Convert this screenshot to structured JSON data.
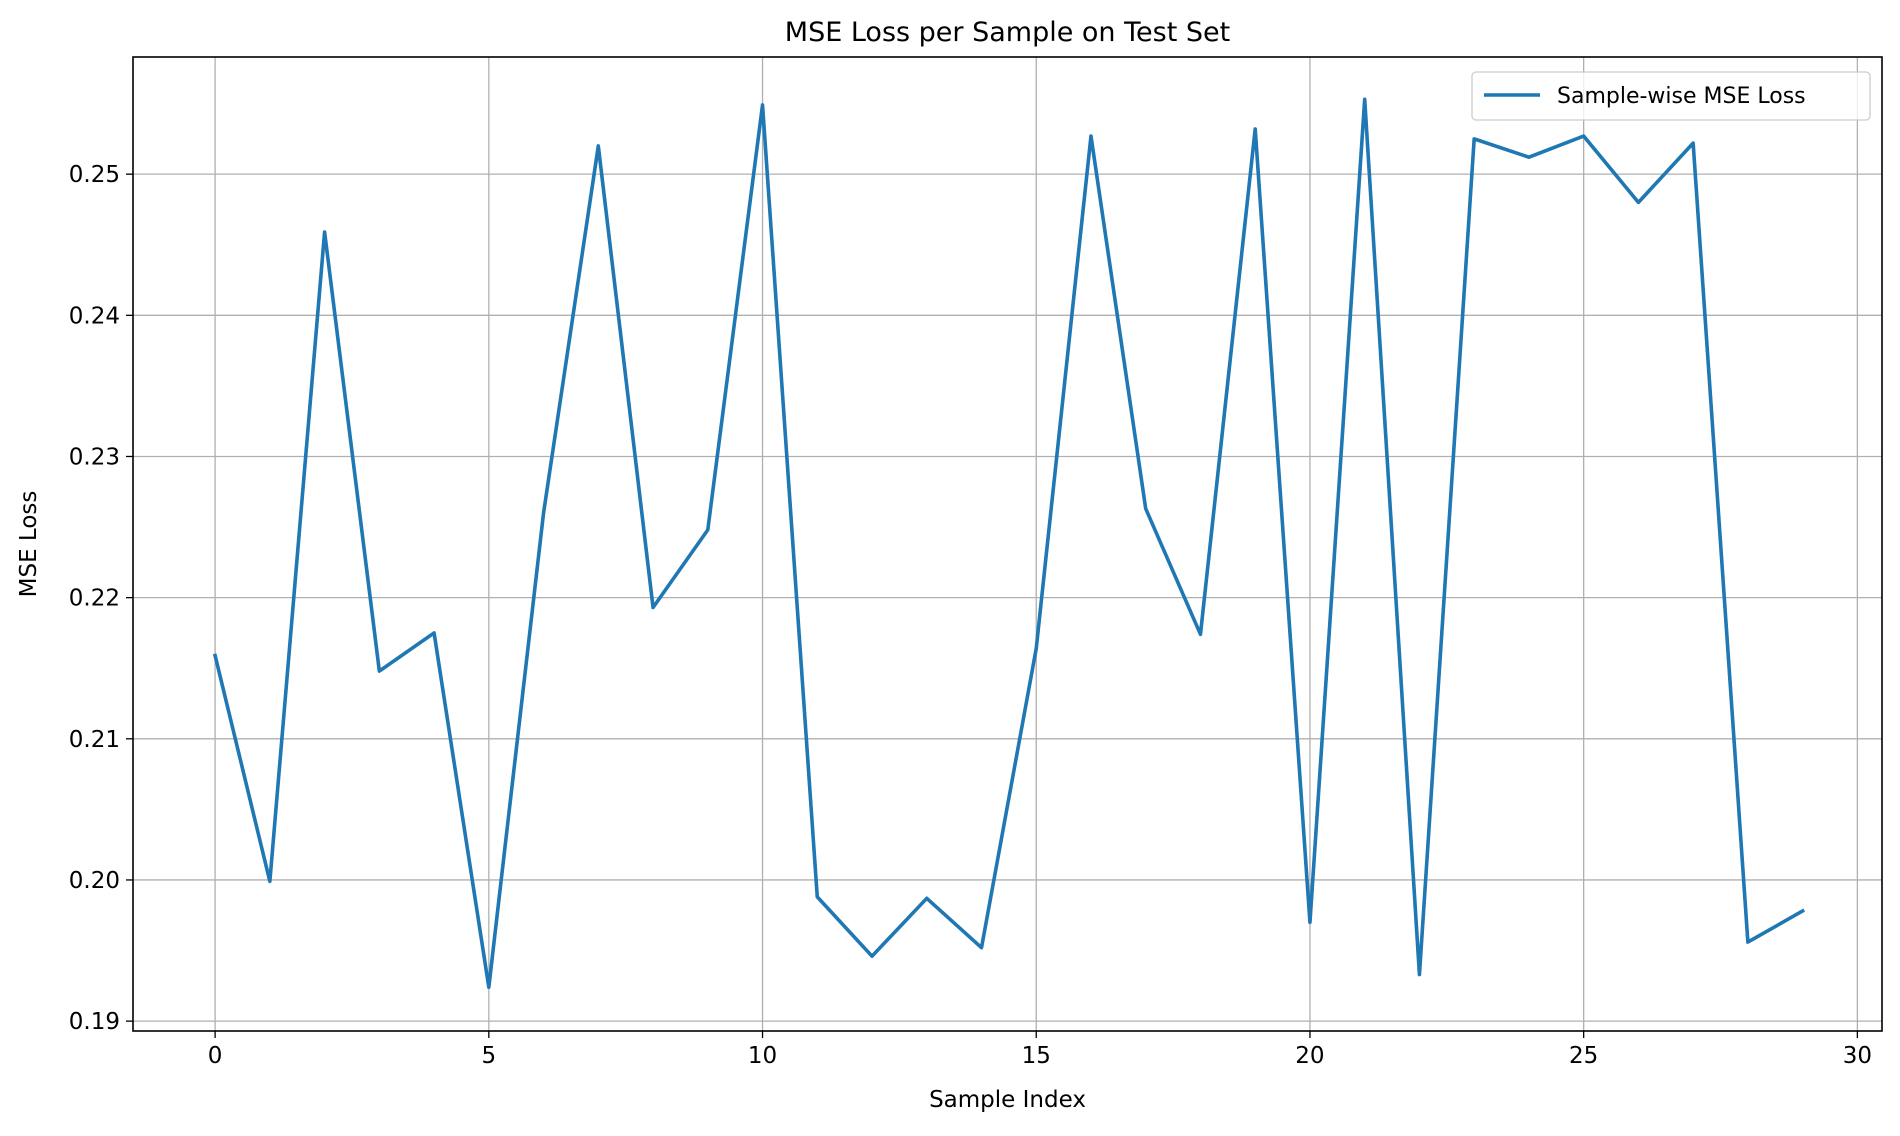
{
  "chart_data": {
    "type": "line",
    "title": "MSE Loss per Sample on Test Set",
    "xlabel": "Sample Index",
    "ylabel": "MSE Loss",
    "x": [
      0,
      1,
      2,
      3,
      4,
      5,
      6,
      7,
      8,
      9,
      10,
      11,
      12,
      13,
      14,
      15,
      16,
      17,
      18,
      19,
      20,
      21,
      22,
      23,
      24,
      25,
      26,
      27,
      28,
      29
    ],
    "series": [
      {
        "name": "Sample-wise MSE Loss",
        "color": "#1f77b4",
        "values": [
          0.2159,
          0.1999,
          0.2459,
          0.2148,
          0.2175,
          0.1924,
          0.226,
          0.252,
          0.2193,
          0.2248,
          0.2549,
          0.1988,
          0.1946,
          0.1987,
          0.1952,
          0.2164,
          0.2527,
          0.2263,
          0.2174,
          0.2532,
          0.197,
          0.2553,
          0.1933,
          0.2525,
          0.2512,
          0.2527,
          0.248,
          0.2522,
          0.1956,
          0.1978
        ]
      }
    ],
    "xlim": [
      -1.5,
      30.45
    ],
    "ylim": [
      0.1893,
      0.2583
    ],
    "xticks": [
      0,
      5,
      10,
      15,
      20,
      25,
      30
    ],
    "xtick_labels": [
      "0",
      "5",
      "10",
      "15",
      "20",
      "25",
      "30"
    ],
    "yticks": [
      0.19,
      0.2,
      0.21,
      0.22,
      0.23,
      0.24,
      0.25
    ],
    "ytick_labels": [
      "0.19",
      "0.20",
      "0.21",
      "0.22",
      "0.23",
      "0.24",
      "0.25"
    ],
    "grid": true,
    "legend_position": "top-right"
  }
}
